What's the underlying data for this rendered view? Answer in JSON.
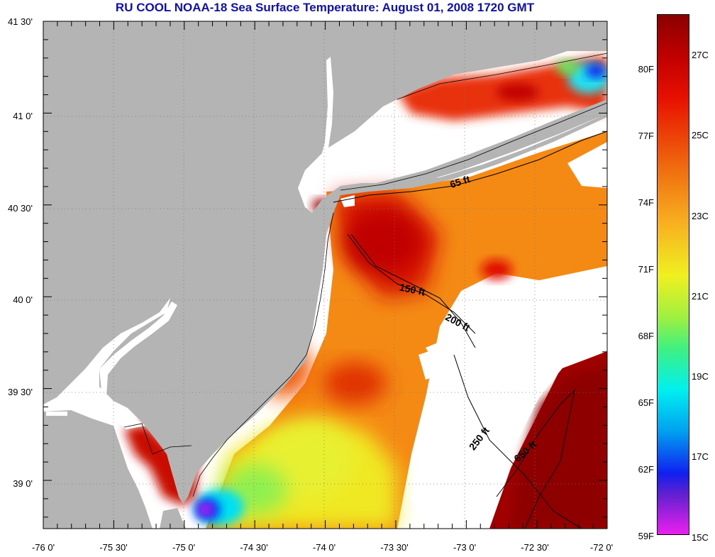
{
  "title": "RU COOL  NOAA-18  Sea Surface Temperature:  August 01, 2008 1720 GMT",
  "axes": {
    "y_labels": [
      "41 30'",
      "41 0'",
      "40 30'",
      "40 0'",
      "39 30'",
      "39 0'"
    ],
    "x_labels": [
      "-76 0'",
      "-75 30'",
      "-75 0'",
      "-74 30'",
      "-74 0'",
      "-73 30'",
      "-73 0'",
      "-72 30'",
      "-72 0'"
    ]
  },
  "contours": [
    "65 ft",
    "150 ft",
    "200 ft",
    "250 ft",
    "650 ft"
  ],
  "colorbar": {
    "fahrenheit": [
      "80F",
      "77F",
      "74F",
      "71F",
      "68F",
      "65F",
      "62F",
      "59F"
    ],
    "celsius": [
      "27C",
      "25C",
      "23C",
      "21C",
      "19C",
      "17C",
      "15C"
    ],
    "colors": {
      "dark_red": "#8b0000",
      "red": "#e01000",
      "orange": "#f48a14",
      "yellow": "#f0f020",
      "green": "#60f060",
      "cyan": "#00f0f0",
      "blue": "#1020f0",
      "magenta": "#f020f0"
    }
  },
  "land_color": "#b4b4b4"
}
